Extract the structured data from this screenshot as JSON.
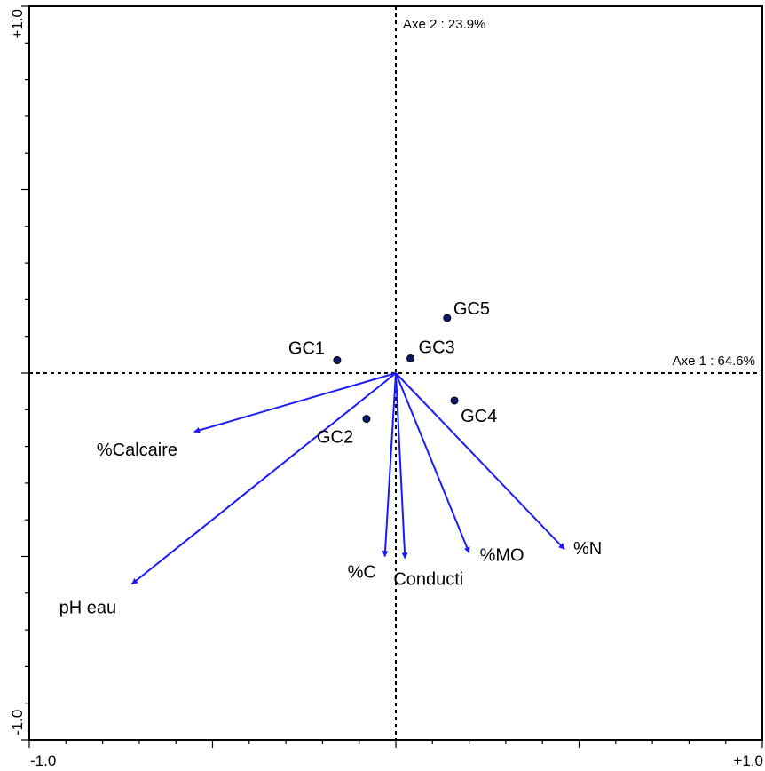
{
  "chart_data": {
    "type": "scatter",
    "subtype": "biplot",
    "xlim": [
      -1.0,
      1.0
    ],
    "ylim": [
      -1.0,
      1.0
    ],
    "x_tick_labels": [
      "-1.0",
      "+1.0"
    ],
    "y_tick_labels": [
      "+1.0",
      "-1.0"
    ],
    "axis1_label": "Axe 1 : 64.6%",
    "axis2_label": "Axe 2 : 23.9%",
    "grid": false,
    "sites": [
      {
        "label": "GC1",
        "x": -0.16,
        "y": 0.035
      },
      {
        "label": "GC2",
        "x": -0.08,
        "y": -0.125
      },
      {
        "label": "GC3",
        "x": 0.04,
        "y": 0.04
      },
      {
        "label": "GC4",
        "x": 0.16,
        "y": -0.075
      },
      {
        "label": "GC5",
        "x": 0.14,
        "y": 0.15
      }
    ],
    "vectors": [
      {
        "label": "%Calcaire",
        "x": -0.55,
        "y": -0.16
      },
      {
        "label": "pH eau",
        "x": -0.72,
        "y": -0.575
      },
      {
        "label": "%C",
        "x": -0.03,
        "y": -0.5
      },
      {
        "label": "Conducti",
        "x": 0.025,
        "y": -0.505
      },
      {
        "label": "%MO",
        "x": 0.2,
        "y": -0.49
      },
      {
        "label": "%N",
        "x": 0.46,
        "y": -0.48
      }
    ],
    "colors": {
      "vector": "#1a1aff",
      "point": "#0a1a6e",
      "axes": "#000000"
    }
  }
}
